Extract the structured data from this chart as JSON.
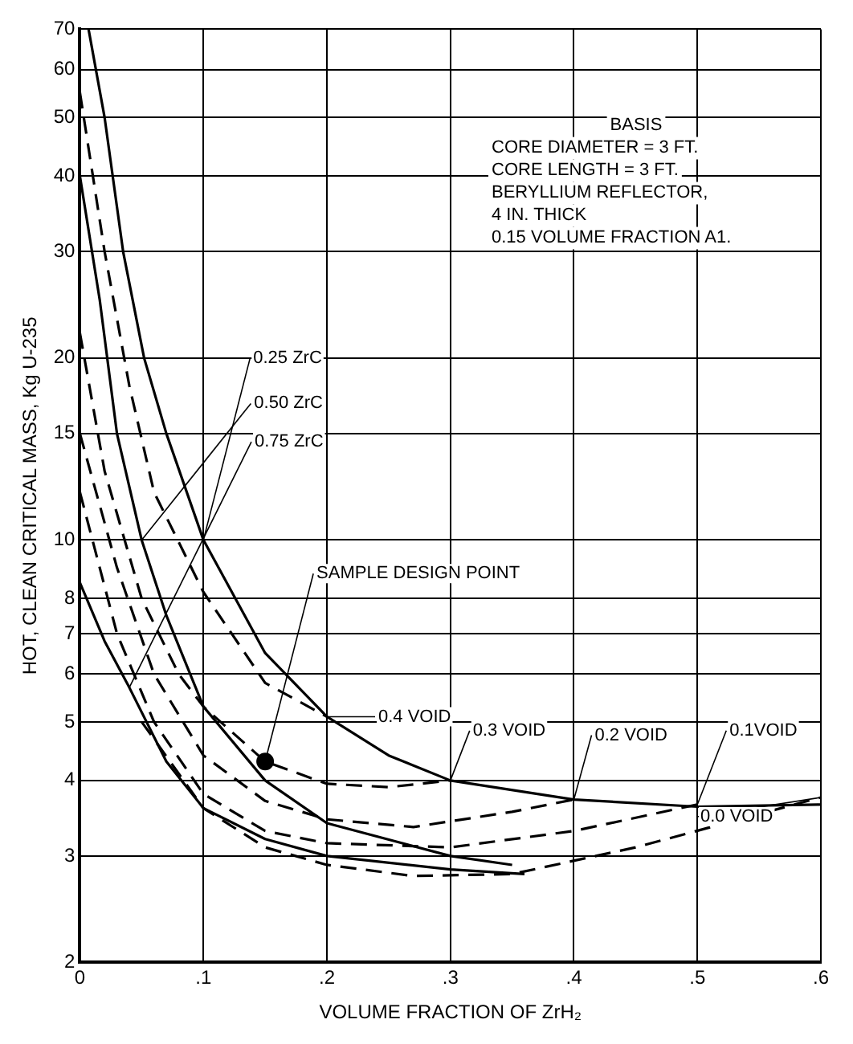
{
  "chart_data": {
    "type": "line",
    "xlabel": "VOLUME FRACTION OF ZrH₂",
    "ylabel": "HOT, CLEAN CRITICAL MASS, Kg U-235",
    "xlim": [
      0,
      0.6
    ],
    "xticks": [
      0,
      {
        "value": 0.1,
        "label": ".1"
      },
      {
        "value": 0.2,
        "label": ".2"
      },
      {
        "value": 0.3,
        "label": ".3"
      },
      {
        "value": 0.4,
        "label": ".4"
      },
      {
        "value": 0.5,
        "label": ".5"
      },
      {
        "value": 0.6,
        "label": ".6"
      }
    ],
    "ylim": [
      2,
      70
    ],
    "yticks": [
      2,
      3,
      4,
      5,
      6,
      7,
      8,
      10,
      15,
      20,
      30,
      40,
      50,
      60,
      70
    ],
    "log": "y",
    "grid": true,
    "marker": "none",
    "series": [
      {
        "color": "#000000",
        "line_style": "solid",
        "x": [
          0.007,
          0.02,
          0.035,
          0.052,
          0.07,
          0.1,
          0.15,
          0.2,
          0.25,
          0.3,
          0.4,
          0.5,
          0.6
        ],
        "values": [
          70,
          50,
          30,
          20,
          15,
          10,
          6.5,
          5.1,
          4.4,
          4.0,
          3.72,
          3.62,
          3.65
        ]
      },
      {
        "color": "#000000",
        "line_style": "solid",
        "x": [
          0,
          0.016,
          0.03,
          0.05,
          0.07,
          0.1,
          0.15,
          0.2,
          0.3,
          0.35
        ],
        "values": [
          40,
          25,
          15,
          10,
          7.5,
          5.3,
          4.0,
          3.4,
          3.0,
          2.9
        ]
      },
      {
        "color": "#000000",
        "line_style": "solid",
        "x": [
          0,
          0.02,
          0.04,
          0.07,
          0.1,
          0.15,
          0.2,
          0.3,
          0.36
        ],
        "values": [
          8.5,
          6.8,
          5.7,
          4.3,
          3.6,
          3.2,
          3.0,
          2.85,
          2.8
        ]
      },
      {
        "color": "#000000",
        "line_style": "dashed",
        "x": [
          0,
          0.02,
          0.04,
          0.06,
          0.1,
          0.15,
          0.2
        ],
        "values": [
          55,
          30,
          18,
          12,
          8.2,
          5.8,
          5.1
        ]
      },
      {
        "color": "#000000",
        "line_style": "dashed",
        "x": [
          0,
          0.02,
          0.05,
          0.08,
          0.1,
          0.15,
          0.2,
          0.25,
          0.3
        ],
        "values": [
          22,
          13,
          8,
          6,
          5.3,
          4.3,
          3.95,
          3.9,
          4.0
        ]
      },
      {
        "color": "#000000",
        "line_style": "dashed",
        "x": [
          0,
          0.03,
          0.06,
          0.1,
          0.15,
          0.2,
          0.27,
          0.35,
          0.4
        ],
        "values": [
          15,
          9,
          6,
          4.4,
          3.7,
          3.45,
          3.35,
          3.55,
          3.72
        ]
      },
      {
        "color": "#000000",
        "line_style": "dashed",
        "x": [
          0,
          0.03,
          0.06,
          0.1,
          0.15,
          0.2,
          0.3,
          0.4,
          0.5
        ],
        "values": [
          12,
          7,
          5,
          3.8,
          3.3,
          3.15,
          3.1,
          3.3,
          3.65
        ]
      },
      {
        "color": "#000000",
        "line_style": "dashed",
        "x": [
          0.05,
          0.1,
          0.15,
          0.2,
          0.27,
          0.35,
          0.45,
          0.6
        ],
        "values": [
          5,
          3.6,
          3.1,
          2.9,
          2.78,
          2.8,
          3.1,
          3.75
        ]
      },
      {
        "type": "scatter",
        "marker": "circle",
        "color": "#000000",
        "x": [
          0.15
        ],
        "values": [
          4.3
        ]
      }
    ],
    "annotations": [
      "BASIS",
      "CORE DIAMETER = 3 FT.",
      "CORE LENGTH = 3 FT.",
      "BERYLLIUM REFLECTOR,",
      "4 IN. THICK",
      "0.15 VOLUME FRACTION A1.",
      {
        "text": "0.25 ZrC",
        "x": 0.1,
        "y": 10
      },
      {
        "text": "0.50 ZrC",
        "x": 0.05,
        "y": 10
      },
      {
        "text": "0.75 ZrC",
        "x": 0.04,
        "y": 5.7
      },
      {
        "text": "SAMPLE DESIGN POINT",
        "x": 0.15,
        "y": 4.3
      },
      {
        "text": "0.4 VOID",
        "x": 0.2,
        "y": 5.1
      },
      {
        "text": "0.3 VOID",
        "x": 0.3,
        "y": 4.0
      },
      {
        "text": "0.2 VOID",
        "x": 0.4,
        "y": 3.72
      },
      {
        "text": "0.1VOID",
        "x": 0.5,
        "y": 3.65
      },
      {
        "text": "0.0 VOID",
        "x": 0.6,
        "y": 3.75
      }
    ]
  }
}
